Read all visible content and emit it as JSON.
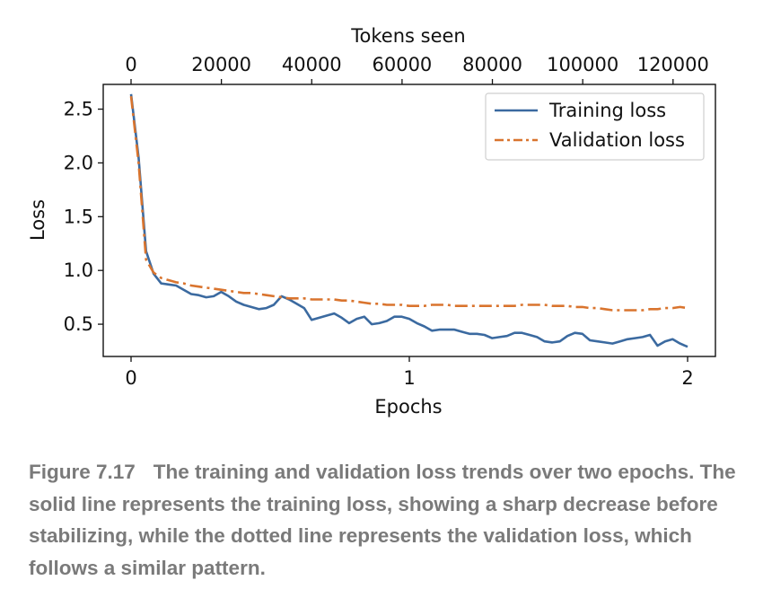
{
  "chart_data": {
    "type": "line",
    "title": "",
    "xlabel": "Epochs",
    "ylabel": "Loss",
    "secondary_xlabel": "Tokens seen",
    "xlim": [
      -0.1,
      2.1
    ],
    "ylim": [
      0.2,
      2.73
    ],
    "xticks": [
      0,
      1,
      2
    ],
    "yticks": [
      0.5,
      1.0,
      1.5,
      2.0,
      2.5
    ],
    "ytick_labels": [
      "0.5",
      "1.0",
      "1.5",
      "2.0",
      "2.5"
    ],
    "top_xlim": [
      -6161,
      129381
    ],
    "top_xticks": [
      0,
      20000,
      40000,
      60000,
      80000,
      100000,
      120000
    ],
    "legend_position": "top-right",
    "grid": false,
    "series": [
      {
        "name": "Training loss",
        "color": "#3b6aa0",
        "linestyle": "solid",
        "x": [
          0.0,
          0.027,
          0.054,
          0.081,
          0.108,
          0.135,
          0.162,
          0.189,
          0.216,
          0.243,
          0.27,
          0.297,
          0.324,
          0.351,
          0.378,
          0.405,
          0.432,
          0.459,
          0.486,
          0.513,
          0.541,
          0.568,
          0.595,
          0.622,
          0.649,
          0.676,
          0.703,
          0.73,
          0.757,
          0.784,
          0.811,
          0.838,
          0.865,
          0.892,
          0.919,
          0.946,
          0.973,
          1.0,
          1.027,
          1.054,
          1.081,
          1.108,
          1.135,
          1.162,
          1.189,
          1.216,
          1.243,
          1.27,
          1.297,
          1.324,
          1.351,
          1.378,
          1.405,
          1.432,
          1.459,
          1.486,
          1.514,
          1.541,
          1.568,
          1.595,
          1.622,
          1.649,
          1.676,
          1.703,
          1.73,
          1.757,
          1.784,
          1.811,
          1.838,
          1.865,
          1.892,
          1.919,
          1.946,
          1.973,
          2.0
        ],
        "y": [
          2.64,
          2.05,
          1.18,
          0.97,
          0.88,
          0.87,
          0.86,
          0.82,
          0.78,
          0.77,
          0.75,
          0.76,
          0.8,
          0.76,
          0.71,
          0.68,
          0.66,
          0.64,
          0.65,
          0.68,
          0.76,
          0.73,
          0.69,
          0.65,
          0.54,
          0.56,
          0.58,
          0.6,
          0.56,
          0.51,
          0.55,
          0.57,
          0.5,
          0.51,
          0.53,
          0.57,
          0.57,
          0.55,
          0.51,
          0.48,
          0.44,
          0.45,
          0.45,
          0.45,
          0.43,
          0.41,
          0.41,
          0.4,
          0.37,
          0.38,
          0.39,
          0.42,
          0.42,
          0.4,
          0.38,
          0.34,
          0.33,
          0.34,
          0.39,
          0.42,
          0.41,
          0.35,
          0.34,
          0.33,
          0.32,
          0.34,
          0.36,
          0.37,
          0.38,
          0.4,
          0.3,
          0.34,
          0.36,
          0.32,
          0.29
        ]
      },
      {
        "name": "Validation loss",
        "color": "#d9742e",
        "linestyle": "dashdot",
        "x": [
          0.0,
          0.027,
          0.054,
          0.081,
          0.108,
          0.135,
          0.162,
          0.189,
          0.216,
          0.243,
          0.27,
          0.297,
          0.324,
          0.351,
          0.378,
          0.405,
          0.432,
          0.459,
          0.486,
          0.513,
          0.541,
          0.568,
          0.595,
          0.622,
          0.649,
          0.676,
          0.703,
          0.73,
          0.757,
          0.784,
          0.811,
          0.838,
          0.865,
          0.892,
          0.919,
          0.946,
          0.973,
          1.0,
          1.027,
          1.054,
          1.081,
          1.108,
          1.135,
          1.162,
          1.189,
          1.216,
          1.243,
          1.27,
          1.297,
          1.324,
          1.351,
          1.378,
          1.405,
          1.432,
          1.459,
          1.486,
          1.514,
          1.541,
          1.568,
          1.595,
          1.622,
          1.649,
          1.676,
          1.703,
          1.73,
          1.757,
          1.784,
          1.811,
          1.838,
          1.865,
          1.892,
          1.919,
          1.946,
          1.973,
          2.0
        ],
        "y": [
          2.62,
          2.0,
          1.1,
          0.98,
          0.93,
          0.91,
          0.89,
          0.88,
          0.86,
          0.85,
          0.84,
          0.83,
          0.82,
          0.81,
          0.8,
          0.79,
          0.79,
          0.78,
          0.77,
          0.76,
          0.75,
          0.74,
          0.74,
          0.74,
          0.73,
          0.73,
          0.73,
          0.73,
          0.72,
          0.72,
          0.71,
          0.7,
          0.69,
          0.69,
          0.68,
          0.68,
          0.68,
          0.67,
          0.67,
          0.67,
          0.68,
          0.68,
          0.68,
          0.67,
          0.67,
          0.67,
          0.67,
          0.67,
          0.67,
          0.67,
          0.67,
          0.67,
          0.68,
          0.68,
          0.68,
          0.68,
          0.67,
          0.67,
          0.67,
          0.66,
          0.66,
          0.65,
          0.65,
          0.64,
          0.63,
          0.63,
          0.63,
          0.63,
          0.63,
          0.64,
          0.64,
          0.65,
          0.65,
          0.66,
          0.65
        ]
      }
    ]
  },
  "caption": {
    "label": "Figure 7.17",
    "text": "The training and validation loss trends over two epochs. The solid line represents the training loss, showing a sharp decrease before stabilizing, while the dotted line represents the validation loss, which follows a similar pattern."
  }
}
